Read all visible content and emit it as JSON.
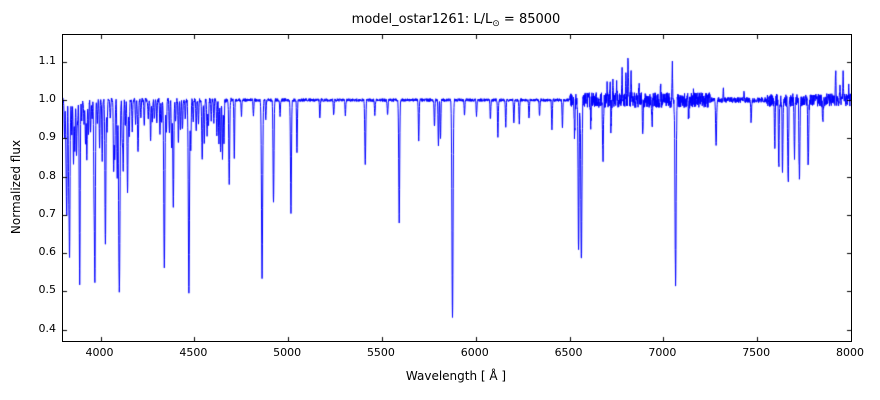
{
  "figure": {
    "title_prefix": "model_ostar1261: L/L",
    "title_sub": "⊙",
    "title_suffix": " = 85000",
    "xlabel": "Wavelength [ Å ]",
    "ylabel": "Normalized flux"
  },
  "chart_data": {
    "type": "line",
    "title": "model_ostar1261: L/L⊙ = 85000",
    "xlabel": "Wavelength [ Å ]",
    "ylabel": "Normalized flux",
    "line_color": "#0000ff",
    "frame_color": "#000000",
    "grid": false,
    "legend": null,
    "xlim": [
      3800,
      8000
    ],
    "ylim": [
      0.37,
      1.17
    ],
    "xticks": [
      4000,
      4500,
      5000,
      5500,
      6000,
      6500,
      7000,
      7500,
      8000
    ],
    "yticks": [
      0.4,
      0.5,
      0.6,
      0.7,
      0.8,
      0.9,
      1.0,
      1.1
    ],
    "continuum": 1.0,
    "sample_step_angstrom": 1,
    "noise_regions": [
      [
        3800,
        4700,
        0.006
      ],
      [
        4700,
        6500,
        0.004
      ],
      [
        6500,
        7250,
        0.02
      ],
      [
        7250,
        7550,
        0.007
      ],
      [
        7550,
        8000,
        0.017
      ]
    ],
    "absorption_lines": [
      [
        3808,
        0.9,
        2
      ],
      [
        3816,
        0.86,
        2
      ],
      [
        3820,
        0.72,
        2
      ],
      [
        3830,
        0.82,
        2
      ],
      [
        3835,
        0.6,
        2.5
      ],
      [
        3847,
        0.91,
        2
      ],
      [
        3856,
        0.83,
        2
      ],
      [
        3863,
        0.87,
        2
      ],
      [
        3872,
        0.85,
        2
      ],
      [
        3878,
        0.94,
        2
      ],
      [
        3889,
        0.52,
        2.5
      ],
      [
        3900,
        0.95,
        2
      ],
      [
        3912,
        0.94,
        2
      ],
      [
        3920,
        0.89,
        2
      ],
      [
        3927,
        0.84,
        2
      ],
      [
        3936,
        0.91,
        2
      ],
      [
        3947,
        0.92,
        2
      ],
      [
        3955,
        0.95,
        2
      ],
      [
        3965,
        0.8,
        2
      ],
      [
        3970,
        0.53,
        2.5
      ],
      [
        3983,
        0.94,
        2
      ],
      [
        3995,
        0.87,
        2
      ],
      [
        4009,
        0.84,
        2
      ],
      [
        4026,
        0.62,
        2.5
      ],
      [
        4035,
        0.92,
        2
      ],
      [
        4052,
        0.95,
        2
      ],
      [
        4070,
        0.81,
        2
      ],
      [
        4076,
        0.84,
        2
      ],
      [
        4089,
        0.79,
        2
      ],
      [
        4097,
        0.84,
        2
      ],
      [
        4101,
        0.53,
        3
      ],
      [
        4116,
        0.89,
        2
      ],
      [
        4121,
        0.82,
        2
      ],
      [
        4132,
        0.93,
        2
      ],
      [
        4144,
        0.76,
        2.5
      ],
      [
        4153,
        0.91,
        2
      ],
      [
        4169,
        0.92,
        2
      ],
      [
        4187,
        0.94,
        2
      ],
      [
        4200,
        0.86,
        2.5
      ],
      [
        4215,
        0.95,
        2
      ],
      [
        4233,
        0.93,
        2
      ],
      [
        4254,
        0.95,
        2
      ],
      [
        4267,
        0.89,
        2
      ],
      [
        4276,
        0.94,
        2
      ],
      [
        4287,
        0.95,
        2
      ],
      [
        4300,
        0.94,
        2
      ],
      [
        4317,
        0.91,
        2
      ],
      [
        4326,
        0.94,
        2
      ],
      [
        4340,
        0.56,
        3
      ],
      [
        4351,
        0.92,
        2
      ],
      [
        4367,
        0.91,
        2
      ],
      [
        4379,
        0.87,
        2
      ],
      [
        4388,
        0.72,
        2.5
      ],
      [
        4400,
        0.94,
        2
      ],
      [
        4415,
        0.89,
        2
      ],
      [
        4426,
        0.92,
        2
      ],
      [
        4437,
        0.92,
        2
      ],
      [
        4452,
        0.95,
        2
      ],
      [
        4471,
        0.49,
        3
      ],
      [
        4481,
        0.87,
        2
      ],
      [
        4494,
        0.94,
        2
      ],
      [
        4510,
        0.92,
        2
      ],
      [
        4522,
        0.94,
        2
      ],
      [
        4542,
        0.84,
        2.5
      ],
      [
        4553,
        0.89,
        2
      ],
      [
        4568,
        0.91,
        2
      ],
      [
        4575,
        0.93,
        2
      ],
      [
        4590,
        0.95,
        2
      ],
      [
        4604,
        0.94,
        2
      ],
      [
        4620,
        0.91,
        2
      ],
      [
        4631,
        0.89,
        2
      ],
      [
        4640,
        0.86,
        2
      ],
      [
        4650,
        0.85,
        2
      ],
      [
        4658,
        0.89,
        2
      ],
      [
        4686,
        0.78,
        2.5
      ],
      [
        4713,
        0.85,
        2
      ],
      [
        4751,
        0.96,
        2
      ],
      [
        4815,
        0.96,
        2
      ],
      [
        4861,
        0.53,
        3
      ],
      [
        4881,
        0.95,
        2
      ],
      [
        4922,
        0.73,
        2.5
      ],
      [
        4957,
        0.96,
        2
      ],
      [
        5015,
        0.7,
        2.5
      ],
      [
        5047,
        0.86,
        2
      ],
      [
        5169,
        0.95,
        2
      ],
      [
        5243,
        0.96,
        2
      ],
      [
        5305,
        0.96,
        2
      ],
      [
        5411,
        0.83,
        2.5
      ],
      [
        5462,
        0.96,
        2
      ],
      [
        5530,
        0.96,
        2
      ],
      [
        5592,
        0.68,
        2.5
      ],
      [
        5696,
        0.89,
        2
      ],
      [
        5780,
        0.93,
        2
      ],
      [
        5801,
        0.88,
        2
      ],
      [
        5812,
        0.9,
        2
      ],
      [
        5876,
        0.43,
        3
      ],
      [
        5940,
        0.96,
        2
      ],
      [
        6004,
        0.96,
        2
      ],
      [
        6078,
        0.95,
        2
      ],
      [
        6118,
        0.9,
        2
      ],
      [
        6160,
        0.93,
        2
      ],
      [
        6203,
        0.94,
        2
      ],
      [
        6232,
        0.94,
        2
      ],
      [
        6284,
        0.95,
        2
      ],
      [
        6340,
        0.96,
        2
      ],
      [
        6406,
        0.92,
        2
      ],
      [
        6462,
        0.93,
        2
      ],
      [
        6527,
        0.9,
        2
      ],
      [
        6548,
        0.6,
        2.5
      ],
      [
        6563,
        0.58,
        3
      ],
      [
        6613,
        0.94,
        2
      ],
      [
        6678,
        0.84,
        2.5
      ],
      [
        6721,
        0.92,
        2
      ],
      [
        6890,
        0.91,
        2
      ],
      [
        6940,
        0.93,
        2
      ],
      [
        7065,
        0.53,
        3
      ],
      [
        7135,
        0.95,
        2
      ],
      [
        7281,
        0.88,
        2.5
      ],
      [
        7468,
        0.94,
        2
      ],
      [
        7594,
        0.86,
        2
      ],
      [
        7615,
        0.82,
        2
      ],
      [
        7635,
        0.8,
        2
      ],
      [
        7665,
        0.78,
        2.5
      ],
      [
        7699,
        0.84,
        2
      ],
      [
        7725,
        0.8,
        2.5
      ],
      [
        7772,
        0.82,
        2.5
      ],
      [
        7850,
        0.93,
        2
      ]
    ],
    "emission_lines": [
      [
        6700,
        1.04,
        1.5
      ],
      [
        6716,
        1.06,
        1.5
      ],
      [
        6731,
        1.05,
        1.5
      ],
      [
        6752,
        1.04,
        1.5
      ],
      [
        6780,
        1.07,
        1.5
      ],
      [
        6800,
        1.08,
        1.5
      ],
      [
        6812,
        1.12,
        1.5
      ],
      [
        6828,
        1.06,
        1.5
      ],
      [
        6870,
        1.03,
        1.5
      ],
      [
        6985,
        1.03,
        1.5
      ],
      [
        7048,
        1.09,
        1.5
      ],
      [
        7160,
        1.02,
        1.5
      ],
      [
        7320,
        1.03,
        1.5
      ],
      [
        7430,
        1.02,
        1.5
      ],
      [
        7918,
        1.08,
        1.5
      ],
      [
        7942,
        1.04,
        1.5
      ],
      [
        7958,
        1.06,
        1.5
      ],
      [
        7988,
        1.05,
        1.5
      ]
    ]
  }
}
